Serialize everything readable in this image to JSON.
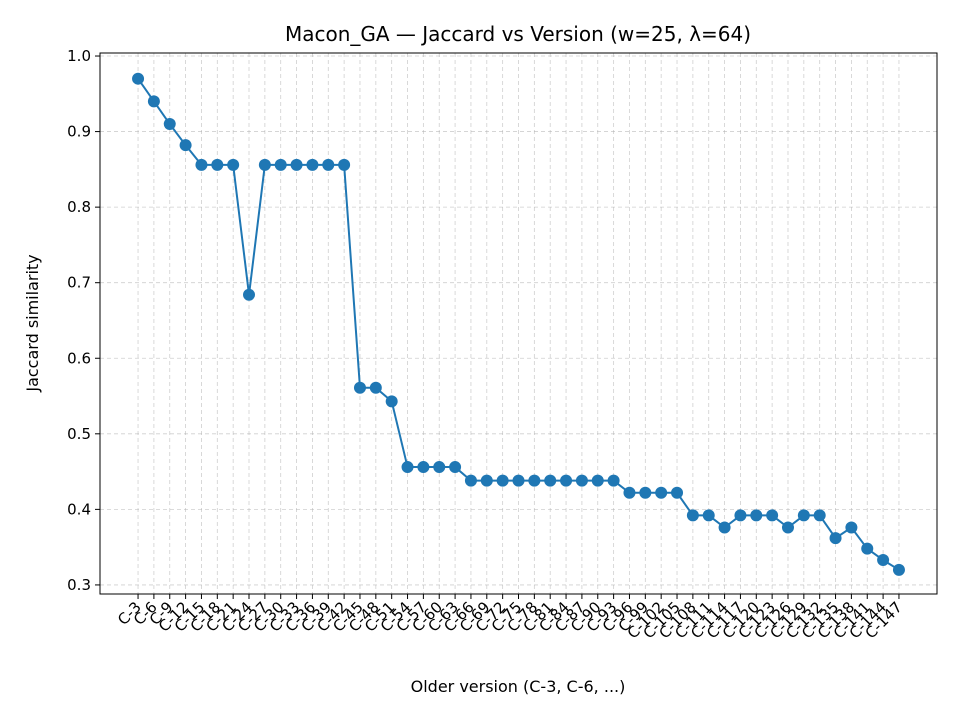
{
  "chart_data": {
    "type": "line",
    "title": "Macon_GA — Jaccard vs Version (w=25, λ=64)",
    "x_label": "Older version (C-3, C-6, ...)",
    "y_label": "Jaccard similarity",
    "categories": [
      "C-3",
      "C-6",
      "C-9",
      "C-12",
      "C-15",
      "C-18",
      "C-21",
      "C-24",
      "C-27",
      "C-30",
      "C-33",
      "C-36",
      "C-39",
      "C-42",
      "C-45",
      "C-48",
      "C-51",
      "C-54",
      "C-57",
      "C-60",
      "C-63",
      "C-66",
      "C-69",
      "C-72",
      "C-75",
      "C-78",
      "C-81",
      "C-84",
      "C-87",
      "C-90",
      "C-93",
      "C-96",
      "C-99",
      "C-102",
      "C-105",
      "C-108",
      "C-111",
      "C-114",
      "C-117",
      "C-120",
      "C-123",
      "C-126",
      "C-129",
      "C-132",
      "C-135",
      "C-138",
      "C-141",
      "C-144",
      "C-147"
    ],
    "series": [
      {
        "name": "Jaccard similarity",
        "color": "#1f77b4",
        "values": [
          0.97,
          0.94,
          0.91,
          0.882,
          0.856,
          0.856,
          0.856,
          0.684,
          0.856,
          0.856,
          0.856,
          0.856,
          0.856,
          0.856,
          0.561,
          0.561,
          0.543,
          0.456,
          0.456,
          0.456,
          0.456,
          0.438,
          0.438,
          0.438,
          0.438,
          0.438,
          0.438,
          0.438,
          0.438,
          0.438,
          0.438,
          0.422,
          0.422,
          0.422,
          0.422,
          0.392,
          0.392,
          0.376,
          0.392,
          0.392,
          0.392,
          0.376,
          0.392,
          0.392,
          0.362,
          0.376,
          0.348,
          0.333,
          0.32
        ]
      }
    ],
    "ylim": [
      0.288,
      1.004
    ],
    "yticks": [
      {
        "value": 0.3,
        "label": "0.3"
      },
      {
        "value": 0.4,
        "label": "0.4"
      },
      {
        "value": 0.5,
        "label": "0.5"
      },
      {
        "value": 0.6,
        "label": "0.6"
      },
      {
        "value": 0.7,
        "label": "0.7"
      },
      {
        "value": 0.8,
        "label": "0.8"
      },
      {
        "value": 0.9,
        "label": "0.9"
      },
      {
        "value": 1.0,
        "label": "1.0"
      }
    ],
    "grid": true
  }
}
